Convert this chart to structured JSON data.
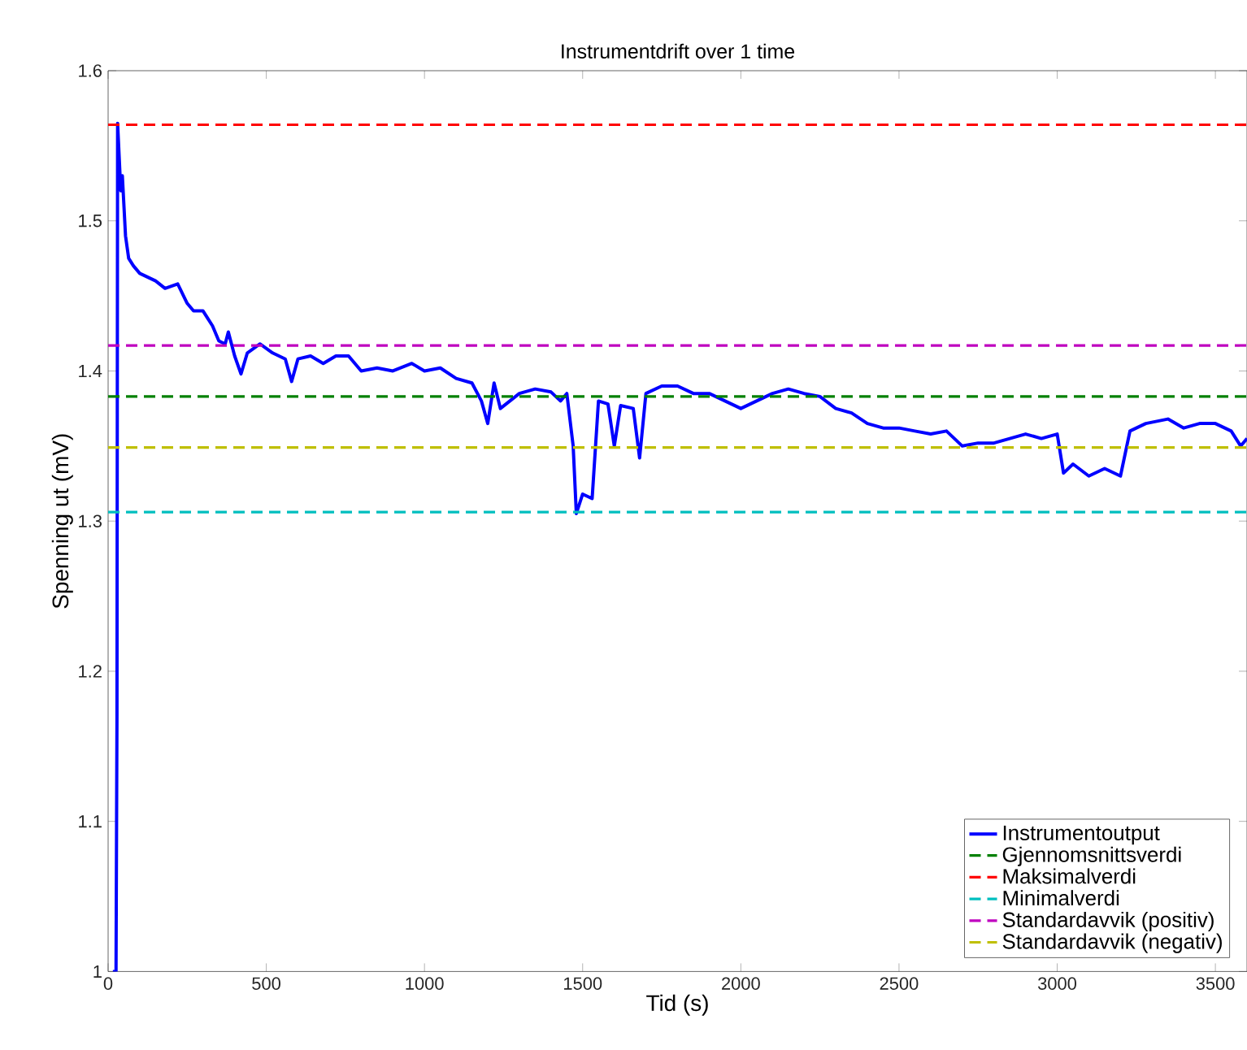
{
  "chart_data": {
    "type": "line",
    "title": "Instrumentdrift over 1 time",
    "xlabel": "Tid (s)",
    "ylabel": "Spenning ut (mV)",
    "xlim": [
      0,
      3600
    ],
    "ylim": [
      1,
      1.6
    ],
    "xticks": [
      0,
      500,
      1000,
      1500,
      2000,
      2500,
      3000,
      3500
    ],
    "yticks": [
      1,
      1.1,
      1.2,
      1.3,
      1.4,
      1.5,
      1.6
    ],
    "grid": false,
    "legend": "bottom right",
    "marker": "none",
    "line_style": "solid",
    "x": [
      15,
      25,
      28,
      30,
      40,
      45,
      55,
      65,
      80,
      100,
      150,
      180,
      220,
      250,
      270,
      300,
      330,
      350,
      370,
      380,
      400,
      420,
      440,
      480,
      520,
      560,
      580,
      600,
      640,
      680,
      720,
      760,
      800,
      850,
      900,
      960,
      1000,
      1050,
      1100,
      1150,
      1180,
      1200,
      1220,
      1240,
      1300,
      1350,
      1400,
      1430,
      1450,
      1470,
      1480,
      1500,
      1530,
      1550,
      1580,
      1600,
      1620,
      1660,
      1680,
      1700,
      1750,
      1800,
      1850,
      1900,
      1950,
      2000,
      2050,
      2100,
      2150,
      2200,
      2250,
      2300,
      2350,
      2400,
      2450,
      2500,
      2550,
      2600,
      2650,
      2700,
      2750,
      2800,
      2850,
      2900,
      2950,
      3000,
      3020,
      3050,
      3100,
      3150,
      3200,
      3230,
      3280,
      3350,
      3400,
      3450,
      3500,
      3550,
      3580,
      3600
    ],
    "series": [
      {
        "name": "Instrumentoutput",
        "color": "#0000ff",
        "values": [
          1.0,
          1.0,
          1.17,
          1.565,
          1.52,
          1.53,
          1.49,
          1.475,
          1.47,
          1.465,
          1.46,
          1.455,
          1.458,
          1.445,
          1.44,
          1.44,
          1.43,
          1.42,
          1.418,
          1.426,
          1.41,
          1.398,
          1.412,
          1.418,
          1.412,
          1.408,
          1.393,
          1.408,
          1.41,
          1.405,
          1.41,
          1.41,
          1.4,
          1.402,
          1.4,
          1.405,
          1.4,
          1.402,
          1.395,
          1.392,
          1.38,
          1.365,
          1.392,
          1.375,
          1.385,
          1.388,
          1.386,
          1.38,
          1.385,
          1.35,
          1.305,
          1.318,
          1.315,
          1.38,
          1.378,
          1.35,
          1.377,
          1.375,
          1.342,
          1.385,
          1.39,
          1.39,
          1.385,
          1.385,
          1.38,
          1.375,
          1.38,
          1.385,
          1.388,
          1.385,
          1.383,
          1.375,
          1.372,
          1.365,
          1.362,
          1.362,
          1.36,
          1.358,
          1.36,
          1.35,
          1.352,
          1.352,
          1.355,
          1.358,
          1.355,
          1.358,
          1.332,
          1.338,
          1.33,
          1.335,
          1.33,
          1.36,
          1.365,
          1.368,
          1.362,
          1.365,
          1.365,
          1.36,
          1.35,
          1.355
        ]
      }
    ],
    "ref_lines": [
      {
        "axis": "y",
        "value": 1.383,
        "label": "Gjennomsnittsverdi",
        "color": "#008000",
        "line_style": "dashed"
      },
      {
        "axis": "y",
        "value": 1.564,
        "label": "Maksimalverdi",
        "color": "#ff0000",
        "line_style": "dashed"
      },
      {
        "axis": "y",
        "value": 1.306,
        "label": "Minimalverdi",
        "color": "#00bfbf",
        "line_style": "dashed"
      },
      {
        "axis": "y",
        "value": 1.417,
        "label": "Standardavvik (positiv)",
        "color": "#bf00bf",
        "line_style": "dashed"
      },
      {
        "axis": "y",
        "value": 1.349,
        "label": "Standardavvik (negativ)",
        "color": "#bfbf00",
        "line_style": "dashed"
      }
    ]
  }
}
